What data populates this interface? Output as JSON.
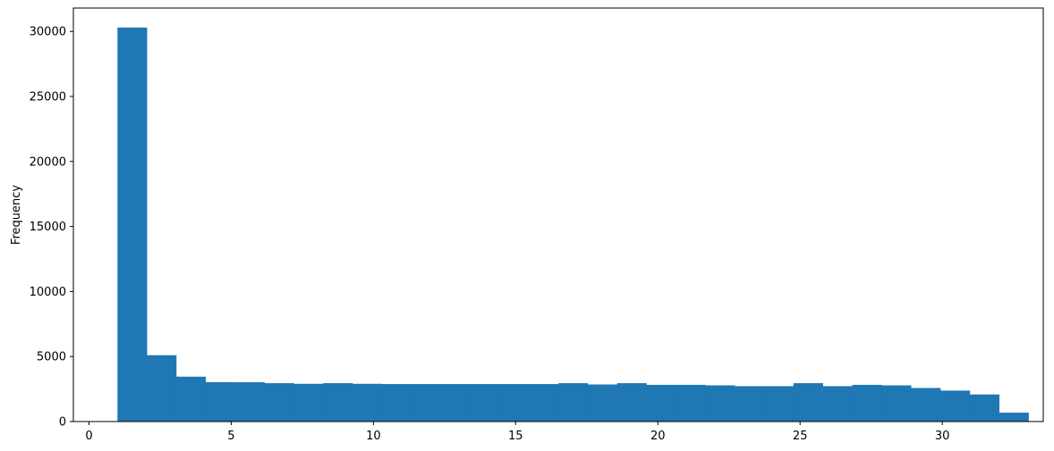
{
  "chart_data": {
    "type": "bar",
    "title": "",
    "xlabel": "",
    "ylabel": "Frequency",
    "xlim": [
      -0.55,
      33.55
    ],
    "ylim": [
      0,
      31800
    ],
    "xticks": [
      0,
      5,
      10,
      15,
      20,
      25,
      30
    ],
    "yticks": [
      0,
      5000,
      10000,
      15000,
      20000,
      25000,
      30000
    ],
    "bin_start": 1,
    "bin_width": 1.0333,
    "values": [
      30300,
      5100,
      3450,
      3030,
      3020,
      2950,
      2900,
      2950,
      2900,
      2880,
      2880,
      2880,
      2880,
      2880,
      2880,
      2950,
      2850,
      2950,
      2820,
      2820,
      2780,
      2720,
      2720,
      2950,
      2720,
      2820,
      2780,
      2580,
      2380,
      2080,
      680
    ],
    "bar_color": "#1f77b4",
    "grid": false,
    "legend": "none"
  }
}
